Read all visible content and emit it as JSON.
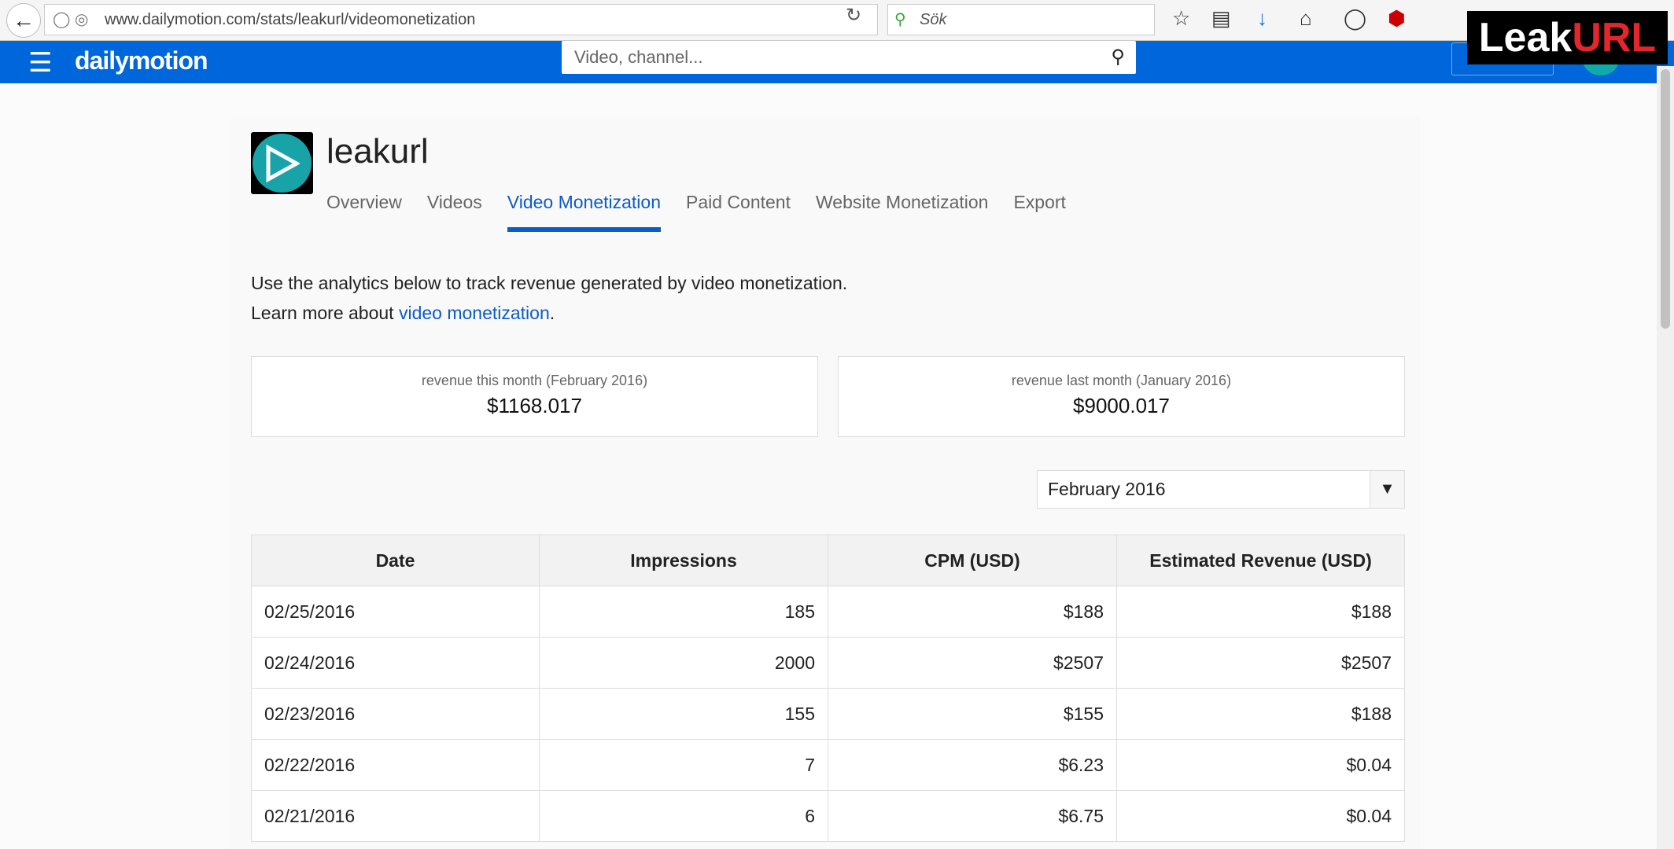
{
  "browser": {
    "url": "www.dailymotion.com/stats/leakurl/videomonetization",
    "search_placeholder": "Sök",
    "icons": [
      "back-icon",
      "shield-icon",
      "globe-icon",
      "reload-icon",
      "star-icon",
      "reading-list-icon",
      "download-icon",
      "home-icon",
      "chat-icon",
      "adblock-icon"
    ]
  },
  "watermark": {
    "part1": "Leak",
    "part2": "URL"
  },
  "header": {
    "brand": "dailymotion",
    "search_placeholder": "Video, channel...",
    "accent": "#0066dc"
  },
  "channel": {
    "name": "leakurl"
  },
  "tabs": [
    {
      "label": "Overview"
    },
    {
      "label": "Videos"
    },
    {
      "label": "Video Monetization",
      "active": true
    },
    {
      "label": "Paid Content"
    },
    {
      "label": "Website Monetization"
    },
    {
      "label": "Export"
    }
  ],
  "intro": {
    "line1": "Use the analytics below to track revenue generated by video monetization.",
    "line2_prefix": "Learn more about ",
    "link": "video monetization",
    "line2_suffix": "."
  },
  "stats": [
    {
      "label": "revenue this month (February 2016)",
      "value": "$1168.017"
    },
    {
      "label": "revenue last month (January 2016)",
      "value": "$9000.017"
    }
  ],
  "month_select": {
    "value": "February 2016"
  },
  "table": {
    "headers": [
      "Date",
      "Impressions",
      "CPM (USD)",
      "Estimated Revenue (USD)"
    ],
    "rows": [
      [
        "02/25/2016",
        "185",
        "$188",
        "$188"
      ],
      [
        "02/24/2016",
        "2000",
        "$2507",
        "$2507"
      ],
      [
        "02/23/2016",
        "155",
        "$155",
        "$188"
      ],
      [
        "02/22/2016",
        "7",
        "$6.23",
        "$0.04"
      ],
      [
        "02/21/2016",
        "6",
        "$6.75",
        "$0.04"
      ]
    ]
  }
}
